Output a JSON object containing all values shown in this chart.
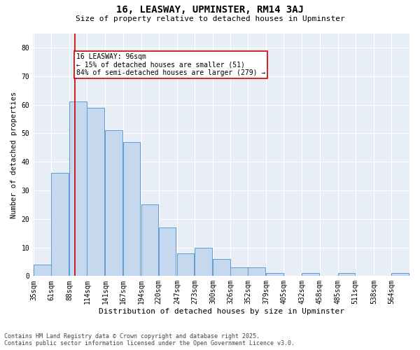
{
  "title": "16, LEASWAY, UPMINSTER, RM14 3AJ",
  "subtitle": "Size of property relative to detached houses in Upminster",
  "xlabel": "Distribution of detached houses by size in Upminster",
  "ylabel": "Number of detached properties",
  "categories": [
    "35sqm",
    "61sqm",
    "88sqm",
    "114sqm",
    "141sqm",
    "167sqm",
    "194sqm",
    "220sqm",
    "247sqm",
    "273sqm",
    "300sqm",
    "326sqm",
    "352sqm",
    "379sqm",
    "405sqm",
    "432sqm",
    "458sqm",
    "485sqm",
    "511sqm",
    "538sqm",
    "564sqm"
  ],
  "bar_heights": [
    4,
    36,
    61,
    59,
    51,
    47,
    25,
    17,
    8,
    10,
    6,
    3,
    3,
    1,
    0,
    1,
    0,
    1,
    0,
    0,
    1
  ],
  "annotation_text": "16 LEASWAY: 96sqm\n← 15% of detached houses are smaller (51)\n84% of semi-detached houses are larger (279) →",
  "red_line_x": 96,
  "bar_fill_color": "#c5d8ed",
  "bar_edge_color": "#5b9bd5",
  "red_line_color": "#cc0000",
  "annotation_box_color": "#cc0000",
  "bg_color": "#e8eef5",
  "footer_text": "Contains HM Land Registry data © Crown copyright and database right 2025.\nContains public sector information licensed under the Open Government Licence v3.0.",
  "ylim": [
    0,
    85
  ],
  "yticks": [
    0,
    10,
    20,
    30,
    40,
    50,
    60,
    70,
    80
  ],
  "title_fontsize": 10,
  "subtitle_fontsize": 8,
  "xlabel_fontsize": 8,
  "ylabel_fontsize": 7.5,
  "tick_fontsize": 7,
  "annotation_fontsize": 7,
  "footer_fontsize": 6
}
